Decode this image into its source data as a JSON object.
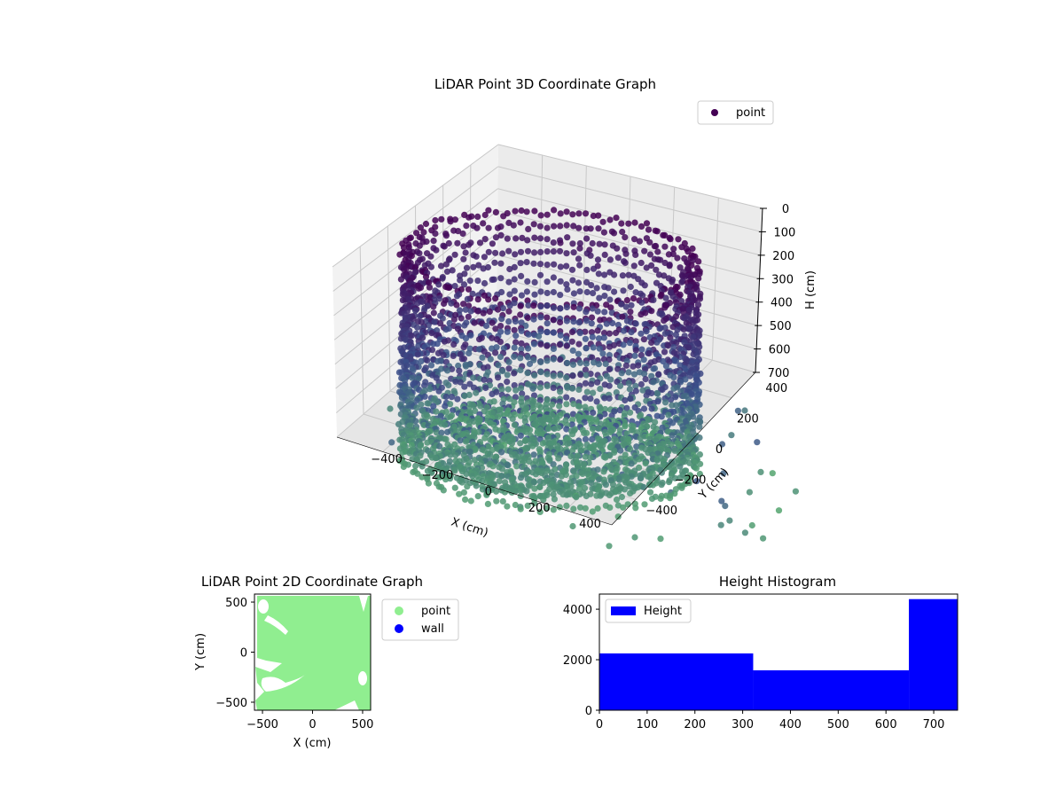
{
  "chart_data": [
    {
      "type": "scatter",
      "projection": "3d",
      "title": "LiDAR Point 3D Coordinate Graph",
      "xlabel": "X (cm)",
      "ylabel": "Y (cm)",
      "zlabel": "H (cm)",
      "x_ticks": [
        "−400",
        "−200",
        "0",
        "200",
        "400"
      ],
      "y_ticks": [
        "−400",
        "−200",
        "0",
        "200",
        "400"
      ],
      "z_ticks": [
        "0",
        "100",
        "200",
        "300",
        "400",
        "500",
        "600",
        "700"
      ],
      "z_inverted": true,
      "grid": true,
      "legend": {
        "position": "upper-right",
        "entries": [
          {
            "label": "point",
            "color": "#440154"
          }
        ]
      },
      "colormap": "viridis",
      "point_color_low": "#440154",
      "point_color_high": "#5ec962",
      "series": [
        {
          "name": "point",
          "description_ring": {
            "radius": 500,
            "h_range": [
              100,
              700
            ]
          },
          "points": [
            {
              "x": -100,
              "y": 300,
              "h": 150
            },
            {
              "x": -50,
              "y": 350,
              "h": 170
            },
            {
              "x": 0,
              "y": 320,
              "h": 160
            },
            {
              "x": 50,
              "y": 280,
              "h": 190
            },
            {
              "x": -600,
              "y": 0,
              "h": 650
            },
            {
              "x": 600,
              "y": -600,
              "h": 700
            },
            {
              "x": 650,
              "y": -500,
              "h": 720
            },
            {
              "x": 550,
              "y": -700,
              "h": 710
            },
            {
              "x": 500,
              "y": 500,
              "h": 600
            },
            {
              "x": 700,
              "y": 200,
              "h": 680
            }
          ]
        }
      ]
    },
    {
      "type": "scatter",
      "title": "LiDAR Point 2D Coordinate Graph",
      "xlabel": "X (cm)",
      "ylabel": "Y (cm)",
      "xlim": [
        -580,
        580
      ],
      "ylim": [
        -580,
        580
      ],
      "x_ticks": [
        "−500",
        "0",
        "500"
      ],
      "y_ticks": [
        "−500",
        "0",
        "500"
      ],
      "legend": {
        "position": "outside-right",
        "entries": [
          {
            "label": "point",
            "color": "#90ee90"
          },
          {
            "label": "wall",
            "color": "#0000ff"
          }
        ]
      },
      "series": [
        {
          "name": "point",
          "color": "#90ee90",
          "coverage": "nearly full square"
        },
        {
          "name": "wall",
          "color": "#0000ff",
          "values": []
        }
      ]
    },
    {
      "type": "bar",
      "title": "Height Histogram",
      "xlim": [
        0,
        750
      ],
      "ylim": [
        0,
        4600
      ],
      "x_ticks": [
        "0",
        "100",
        "200",
        "300",
        "400",
        "500",
        "600",
        "700"
      ],
      "y_ticks": [
        "0",
        "2000",
        "4000"
      ],
      "legend": {
        "position": "upper-left",
        "entries": [
          {
            "label": "Height",
            "color": "#0000ff"
          }
        ]
      },
      "series": [
        {
          "name": "Height",
          "color": "#0000ff",
          "bins": [
            {
              "from": 0,
              "to": 322,
              "count": 2250
            },
            {
              "from": 322,
              "to": 648,
              "count": 1580
            },
            {
              "from": 648,
              "to": 750,
              "count": 4400
            }
          ]
        }
      ]
    }
  ]
}
